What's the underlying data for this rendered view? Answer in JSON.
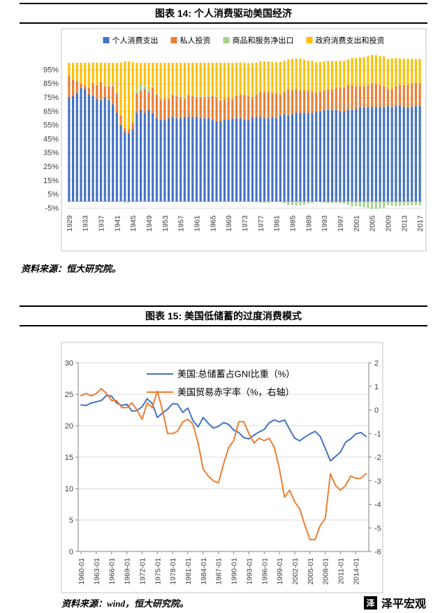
{
  "figure14": {
    "title": "图表 14: 个人消费驱动美国经济",
    "source": "资料来源：恒大研究院。"
  },
  "figure15": {
    "title": "图表 15: 美国低储蓄的过度消费模式",
    "source": "资料来源：wind，恒大研究院。"
  },
  "footer": {
    "brand": "泽平宏观",
    "logo_char": "泽"
  },
  "chart_data": [
    {
      "type": "bar",
      "stacked": true,
      "title": "个人消费驱动美国经济",
      "legend_position": "top",
      "grid": true,
      "x_start": 1929,
      "x_end": 2017,
      "x_tick_labels": [
        "1929",
        "1933",
        "1937",
        "1941",
        "1945",
        "1949",
        "1953",
        "1957",
        "1961",
        "1965",
        "1969",
        "1973",
        "1977",
        "1981",
        "1985",
        "1989",
        "1993",
        "1997",
        "2001",
        "2005",
        "2009",
        "2013",
        "2017"
      ],
      "y_axis": {
        "min": -5,
        "max": 105,
        "tick_step": 10,
        "tick_suffix": "%",
        "tick_labels": [
          "95%",
          "85%",
          "75%",
          "65%",
          "55%",
          "45%",
          "35%",
          "25%",
          "15%",
          "5%",
          "-5%"
        ]
      },
      "series": [
        {
          "name": "个人消费支出",
          "color": "#4472C4",
          "values": [
            75,
            76,
            78,
            82,
            81,
            77,
            76,
            74,
            73,
            75,
            73,
            70,
            64,
            55,
            50,
            49,
            52,
            64,
            66,
            64,
            66,
            64,
            60,
            59,
            59,
            60,
            61,
            60,
            60,
            61,
            61,
            61,
            61,
            60,
            60,
            60,
            59,
            58,
            58,
            59,
            59,
            60,
            60,
            60,
            59,
            59,
            61,
            61,
            61,
            60,
            60,
            61,
            60,
            62,
            63,
            62,
            63,
            64,
            64,
            64,
            64,
            64,
            65,
            65,
            66,
            66,
            66,
            66,
            65,
            65,
            66,
            66,
            67,
            68,
            68,
            68,
            68,
            68,
            68,
            68,
            69,
            68,
            69,
            69,
            68,
            68,
            68,
            69,
            69
          ]
        },
        {
          "name": "私人投资",
          "color": "#ED7D31",
          "values": [
            16,
            12,
            9,
            3,
            3,
            5,
            9,
            10,
            13,
            8,
            10,
            13,
            14,
            7,
            3,
            3,
            5,
            14,
            14,
            17,
            13,
            18,
            17,
            15,
            15,
            14,
            16,
            16,
            15,
            13,
            16,
            15,
            14,
            15,
            15,
            15,
            17,
            17,
            15,
            15,
            16,
            14,
            16,
            17,
            18,
            17,
            14,
            16,
            18,
            19,
            19,
            17,
            18,
            15,
            16,
            19,
            17,
            17,
            16,
            16,
            16,
            15,
            13,
            14,
            14,
            15,
            15,
            16,
            17,
            17,
            18,
            18,
            16,
            15,
            15,
            16,
            17,
            17,
            16,
            15,
            12,
            13,
            14,
            15,
            16,
            16,
            17,
            16,
            16
          ]
        },
        {
          "name": "商品和服务净出口",
          "color": "#A9D18E",
          "values": [
            0.4,
            0.3,
            0.2,
            0.2,
            0.1,
            0.3,
            -0.1,
            -0.1,
            0.1,
            1.1,
            0.9,
            1.5,
            1.0,
            -0.2,
            -1.0,
            -1.0,
            -0.5,
            3.2,
            4.5,
            2.4,
            2.3,
            0.7,
            1.0,
            0.6,
            0.1,
            0.5,
            0.5,
            0.9,
            1.2,
            0.5,
            0.2,
            0.8,
            0.9,
            0.8,
            0.9,
            1.2,
            0.9,
            0.5,
            0.5,
            0.1,
            0.1,
            0.4,
            0.0,
            -0.3,
            0.3,
            0.1,
            1.0,
            0.0,
            -1.0,
            -1.0,
            -0.9,
            -0.5,
            -0.4,
            -0.6,
            -1.4,
            -2.5,
            -2.8,
            -3.0,
            -3.1,
            -2.3,
            -1.6,
            -1.3,
            -0.5,
            -0.5,
            -1.0,
            -1.4,
            -1.2,
            -1.3,
            -1.2,
            -1.6,
            -2.5,
            -3.7,
            -3.4,
            -3.9,
            -4.2,
            -4.9,
            -5.5,
            -5.5,
            -4.9,
            -4.6,
            -2.7,
            -3.2,
            -3.4,
            -3.2,
            -2.8,
            -2.9,
            -2.9,
            -2.7,
            -2.8
          ]
        },
        {
          "name": "政府消费支出和投资",
          "color": "#FFC000",
          "values": [
            8.6,
            11.7,
            12.8,
            14.8,
            15.9,
            17.7,
            15.1,
            16.1,
            13.9,
            15.9,
            16.1,
            15.5,
            21.0,
            38.2,
            48.0,
            49.0,
            43.5,
            18.8,
            15.5,
            16.6,
            18.7,
            17.3,
            22.0,
            25.4,
            25.9,
            25.5,
            22.5,
            23.1,
            23.8,
            25.5,
            22.8,
            23.2,
            24.1,
            24.2,
            24.1,
            23.8,
            23.1,
            24.5,
            26.5,
            25.9,
            24.9,
            25.6,
            24.0,
            23.3,
            22.7,
            23.9,
            24.0,
            23.0,
            22.0,
            22.0,
            21.9,
            22.5,
            22.4,
            23.6,
            22.4,
            21.5,
            22.8,
            22.0,
            23.1,
            22.3,
            21.6,
            22.3,
            22.5,
            21.5,
            21.0,
            20.4,
            20.2,
            19.3,
            19.2,
            19.6,
            18.5,
            19.7,
            20.4,
            20.9,
            21.2,
            20.9,
            20.5,
            20.5,
            20.9,
            21.6,
            21.7,
            22.2,
            20.4,
            19.2,
            18.8,
            18.9,
            17.9,
            17.7,
            17.8
          ]
        }
      ]
    },
    {
      "type": "line",
      "title": "美国低储蓄的过度消费模式",
      "legend_position": "top-center",
      "grid": true,
      "x_start": 1960,
      "x_end": 2016,
      "x_tick_labels": [
        "1960-01",
        "1963-01",
        "1966-01",
        "1969-01",
        "1972-01",
        "1975-01",
        "1978-01",
        "1981-01",
        "1984-01",
        "1987-01",
        "1990-01",
        "1993-01",
        "1996-01",
        "1999-01",
        "2002-01",
        "2005-01",
        "2008-01",
        "2011-01",
        "2014-01"
      ],
      "left_axis": {
        "min": 0,
        "max": 30,
        "tick_step": 5,
        "tick_labels": [
          "0",
          "5",
          "10",
          "15",
          "20",
          "25",
          "30"
        ]
      },
      "right_axis": {
        "min": -6,
        "max": 2,
        "tick_step": 1,
        "tick_labels": [
          "-6",
          "-5",
          "-4",
          "-3",
          "-2",
          "-1",
          "0",
          "1",
          "2"
        ]
      },
      "series": [
        {
          "name": "美国:总储蓄占GNI比重（%）",
          "axis": "left",
          "color": "#4472C4",
          "values": [
            23.3,
            23.2,
            23.6,
            23.8,
            24.0,
            24.8,
            24.7,
            23.6,
            23.2,
            23.4,
            22.3,
            22.4,
            23.0,
            24.3,
            23.5,
            21.3,
            22.0,
            22.6,
            23.5,
            23.4,
            22.1,
            22.8,
            20.8,
            19.8,
            21.3,
            20.4,
            19.6,
            19.9,
            20.5,
            20.2,
            19.3,
            18.9,
            18.1,
            17.9,
            18.5,
            19.0,
            19.4,
            20.5,
            20.9,
            20.6,
            20.9,
            19.4,
            18.0,
            17.6,
            18.2,
            18.7,
            19.1,
            18.3,
            16.4,
            14.4,
            15.1,
            15.8,
            17.4,
            17.9,
            18.7,
            18.9,
            18.3
          ]
        },
        {
          "name": "美国贸易赤字率（%，右轴）",
          "axis": "right",
          "color": "#ED7D31",
          "values": [
            0.6,
            0.7,
            0.6,
            0.7,
            0.9,
            0.7,
            0.4,
            0.4,
            0.1,
            0.1,
            0.3,
            0.0,
            -0.4,
            0.3,
            0.1,
            0.8,
            0.0,
            -1.0,
            -1.0,
            -0.9,
            -0.5,
            -0.4,
            -0.6,
            -1.4,
            -2.5,
            -2.8,
            -3.0,
            -3.1,
            -2.3,
            -1.6,
            -1.3,
            -0.5,
            -0.5,
            -1.0,
            -1.4,
            -1.2,
            -1.3,
            -1.2,
            -1.6,
            -2.5,
            -3.7,
            -3.4,
            -3.9,
            -4.2,
            -4.9,
            -5.5,
            -5.5,
            -4.9,
            -4.6,
            -2.7,
            -3.2,
            -3.4,
            -3.2,
            -2.8,
            -2.9,
            -2.9,
            -2.7
          ]
        }
      ]
    }
  ]
}
